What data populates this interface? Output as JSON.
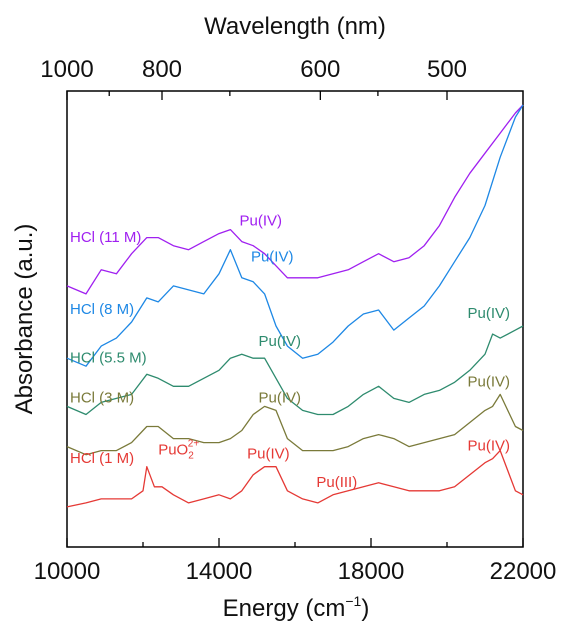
{
  "chart_data": {
    "type": "line",
    "xlabel": "Energy (cm",
    "xlabel_sup": "−1",
    "xlabel_close": ")",
    "ylabel": "Absorbance (a.u.)",
    "top_xlabel": "Wavelength (nm)",
    "xlim": [
      10000,
      22000
    ],
    "x_ticks": [
      10000,
      14000,
      18000,
      22000
    ],
    "x_tick_labels": [
      "10000",
      "14000",
      "18000",
      "22000"
    ],
    "top_ticks_nm": [
      1000,
      800,
      600,
      500
    ],
    "top_tick_labels": [
      "1000",
      "800",
      "600",
      "500"
    ],
    "grid": false,
    "legend": "none",
    "series": [
      {
        "name": "HCl (11 M)",
        "color": "#a020f0",
        "x": [
          10000,
          10500,
          10900,
          11300,
          11700,
          12100,
          12400,
          12800,
          13200,
          13600,
          14000,
          14300,
          14600,
          14900,
          15200,
          15500,
          15800,
          16200,
          16600,
          17000,
          17400,
          17800,
          18200,
          18600,
          19000,
          19400,
          19800,
          20200,
          20600,
          21000,
          21400,
          21800,
          22000
        ],
        "y": [
          0.6,
          0.58,
          0.64,
          0.63,
          0.68,
          0.72,
          0.72,
          0.7,
          0.69,
          0.71,
          0.73,
          0.74,
          0.71,
          0.7,
          0.68,
          0.65,
          0.62,
          0.62,
          0.62,
          0.63,
          0.64,
          0.66,
          0.68,
          0.66,
          0.67,
          0.7,
          0.75,
          0.82,
          0.88,
          0.93,
          0.98,
          1.03,
          1.05
        ]
      },
      {
        "name": "HCl (8 M)",
        "color": "#1e88e5",
        "x": [
          10000,
          10500,
          10900,
          11300,
          11700,
          12100,
          12400,
          12800,
          13200,
          13600,
          14000,
          14300,
          14600,
          14900,
          15200,
          15500,
          15800,
          16200,
          16600,
          17000,
          17400,
          17800,
          18200,
          18600,
          19000,
          19400,
          19800,
          20200,
          20600,
          21000,
          21400,
          21800,
          22000
        ],
        "y": [
          0.42,
          0.4,
          0.45,
          0.47,
          0.51,
          0.57,
          0.56,
          0.6,
          0.59,
          0.58,
          0.63,
          0.69,
          0.62,
          0.61,
          0.58,
          0.5,
          0.45,
          0.42,
          0.43,
          0.46,
          0.5,
          0.53,
          0.54,
          0.49,
          0.52,
          0.55,
          0.6,
          0.66,
          0.72,
          0.8,
          0.92,
          1.02,
          1.05
        ]
      },
      {
        "name": "HCl (5.5 M)",
        "color": "#2e8b6e",
        "x": [
          10000,
          10500,
          10900,
          11300,
          11700,
          12100,
          12400,
          12800,
          13200,
          13600,
          14000,
          14300,
          14600,
          14900,
          15200,
          15500,
          15800,
          16200,
          16600,
          17000,
          17400,
          17800,
          18200,
          18600,
          19000,
          19400,
          19800,
          20200,
          20600,
          21000,
          21200,
          21400,
          21800,
          22000
        ],
        "y": [
          0.3,
          0.28,
          0.31,
          0.32,
          0.33,
          0.38,
          0.37,
          0.35,
          0.35,
          0.37,
          0.39,
          0.42,
          0.43,
          0.42,
          0.42,
          0.37,
          0.32,
          0.29,
          0.28,
          0.28,
          0.3,
          0.33,
          0.35,
          0.32,
          0.31,
          0.33,
          0.34,
          0.36,
          0.39,
          0.43,
          0.48,
          0.47,
          0.49,
          0.5
        ]
      },
      {
        "name": "HCl (3 M)",
        "color": "#7a7a3a",
        "x": [
          10000,
          10500,
          10900,
          11300,
          11700,
          12100,
          12400,
          12800,
          13200,
          13600,
          14000,
          14300,
          14600,
          14900,
          15200,
          15500,
          15800,
          16200,
          16600,
          17000,
          17400,
          17800,
          18200,
          18600,
          19000,
          19400,
          19800,
          20200,
          20600,
          21000,
          21200,
          21400,
          21800,
          22000
        ],
        "y": [
          0.2,
          0.18,
          0.19,
          0.19,
          0.21,
          0.25,
          0.25,
          0.22,
          0.22,
          0.21,
          0.21,
          0.22,
          0.24,
          0.28,
          0.3,
          0.29,
          0.22,
          0.19,
          0.19,
          0.19,
          0.2,
          0.22,
          0.23,
          0.22,
          0.2,
          0.21,
          0.22,
          0.23,
          0.26,
          0.29,
          0.3,
          0.33,
          0.25,
          0.24
        ]
      },
      {
        "name": "HCl (1 M)",
        "color": "#e53935",
        "x": [
          10000,
          10500,
          10900,
          11300,
          11700,
          12000,
          12100,
          12300,
          12500,
          12800,
          13200,
          13600,
          14000,
          14300,
          14600,
          14900,
          15200,
          15500,
          15800,
          16200,
          16600,
          17000,
          17400,
          17800,
          18200,
          18600,
          19000,
          19400,
          19800,
          20200,
          20600,
          21000,
          21200,
          21400,
          21800,
          22000
        ],
        "y": [
          0.05,
          0.06,
          0.07,
          0.07,
          0.07,
          0.09,
          0.15,
          0.1,
          0.1,
          0.08,
          0.06,
          0.07,
          0.08,
          0.07,
          0.09,
          0.13,
          0.15,
          0.15,
          0.09,
          0.07,
          0.06,
          0.08,
          0.09,
          0.1,
          0.11,
          0.1,
          0.09,
          0.09,
          0.09,
          0.1,
          0.13,
          0.16,
          0.17,
          0.19,
          0.09,
          0.08
        ]
      }
    ],
    "annotations": [
      {
        "text": "Pu(IV)",
        "x": 15100,
        "y": 0.75,
        "color": "#a020f0"
      },
      {
        "text": "Pu(IV)",
        "x": 15400,
        "y": 0.66,
        "color": "#1e88e5"
      },
      {
        "text": "Pu(IV)",
        "x": 15600,
        "y": 0.45,
        "color": "#2e8b6e"
      },
      {
        "text": "Pu(IV)",
        "x": 21100,
        "y": 0.52,
        "color": "#2e8b6e"
      },
      {
        "text": "Pu(IV)",
        "x": 15600,
        "y": 0.31,
        "color": "#7a7a3a"
      },
      {
        "text": "Pu(IV)",
        "x": 21100,
        "y": 0.35,
        "color": "#7a7a3a"
      },
      {
        "text": "Pu(IV)",
        "x": 15300,
        "y": 0.17,
        "color": "#e53935"
      },
      {
        "text": "Pu(IV)",
        "x": 21100,
        "y": 0.19,
        "color": "#e53935"
      },
      {
        "text": "Pu(III)",
        "x": 17100,
        "y": 0.1,
        "color": "#e53935"
      }
    ],
    "puo2": {
      "base": "PuO",
      "sub": "2",
      "sup": "2+",
      "x": 12400,
      "y": 0.18,
      "color": "#e53935"
    },
    "ylim": [
      0,
      1.05
    ]
  }
}
